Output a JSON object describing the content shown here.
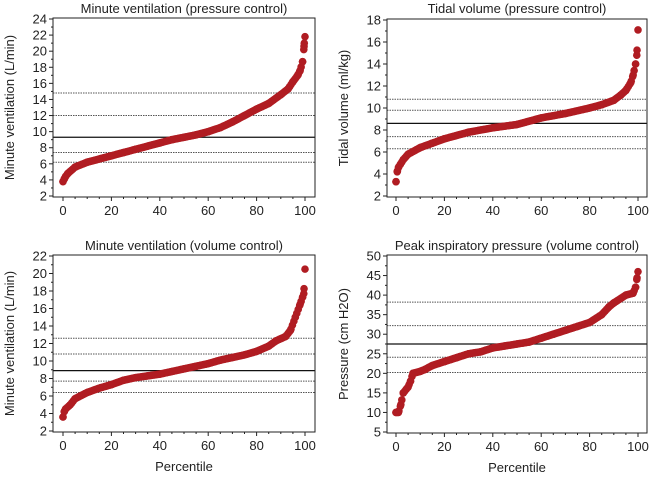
{
  "chart_data": [
    {
      "type": "scatter",
      "title": "Minute ventilation (pressure control)",
      "xlabel": "",
      "ylabel": "Minute ventilation (L/min)",
      "xlim": [
        0,
        100
      ],
      "ylim": [
        2,
        24
      ],
      "xticks": [
        0,
        20,
        40,
        60,
        80,
        100
      ],
      "yticks": [
        2,
        4,
        6,
        8,
        10,
        12,
        14,
        16,
        18,
        20,
        22,
        24
      ],
      "reference_lines": [
        {
          "y": 14.8,
          "style": "dotted"
        },
        {
          "y": 12.0,
          "style": "dotted"
        },
        {
          "y": 9.3,
          "style": "solid"
        },
        {
          "y": 7.4,
          "style": "dotted"
        },
        {
          "y": 6.2,
          "style": "dotted"
        }
      ],
      "x": [
        0,
        0.5,
        1,
        2,
        5,
        10,
        15,
        20,
        25,
        30,
        35,
        40,
        45,
        50,
        55,
        60,
        65,
        70,
        75,
        80,
        85,
        90,
        93,
        95,
        97,
        98,
        99,
        99.5,
        99.7,
        100
      ],
      "y": [
        3.8,
        4.1,
        4.4,
        4.8,
        5.6,
        6.2,
        6.6,
        7.0,
        7.4,
        7.8,
        8.2,
        8.6,
        9.0,
        9.3,
        9.6,
        10.0,
        10.5,
        11.2,
        12.0,
        12.8,
        13.5,
        14.6,
        15.3,
        16.2,
        17.0,
        17.6,
        18.7,
        20.2,
        21.0,
        21.8
      ]
    },
    {
      "type": "scatter",
      "title": "Tidal volume (pressure control)",
      "xlabel": "",
      "ylabel": "Tidal volume (ml/kg)",
      "xlim": [
        0,
        100
      ],
      "ylim": [
        2,
        18
      ],
      "xticks": [
        0,
        20,
        40,
        60,
        80,
        100
      ],
      "yticks": [
        2,
        4,
        6,
        8,
        10,
        12,
        14,
        16,
        18
      ],
      "reference_lines": [
        {
          "y": 10.8,
          "style": "dotted"
        },
        {
          "y": 9.8,
          "style": "dotted"
        },
        {
          "y": 8.6,
          "style": "solid"
        },
        {
          "y": 7.4,
          "style": "dotted"
        },
        {
          "y": 6.3,
          "style": "dotted"
        }
      ],
      "x": [
        0,
        0.5,
        1,
        3,
        5,
        10,
        15,
        20,
        25,
        30,
        40,
        50,
        60,
        70,
        80,
        85,
        90,
        93,
        95,
        97,
        98,
        99,
        99.5,
        100
      ],
      "y": [
        3.3,
        4.2,
        4.6,
        5.3,
        5.8,
        6.4,
        6.8,
        7.2,
        7.5,
        7.8,
        8.2,
        8.5,
        9.1,
        9.5,
        10.0,
        10.3,
        10.7,
        11.2,
        11.6,
        12.3,
        13.0,
        14.0,
        14.8,
        17.1
      ]
    },
    {
      "type": "scatter",
      "title": "Minute ventilation (volume control)",
      "xlabel": "Percentile",
      "ylabel": "Minute ventilation (L/min)",
      "xlim": [
        0,
        100
      ],
      "ylim": [
        2,
        22
      ],
      "xticks": [
        0,
        20,
        40,
        60,
        80,
        100
      ],
      "yticks": [
        2,
        4,
        6,
        8,
        10,
        12,
        14,
        16,
        18,
        20,
        22
      ],
      "reference_lines": [
        {
          "y": 12.6,
          "style": "dotted"
        },
        {
          "y": 10.8,
          "style": "dotted"
        },
        {
          "y": 8.9,
          "style": "solid"
        },
        {
          "y": 7.7,
          "style": "dotted"
        },
        {
          "y": 6.4,
          "style": "dotted"
        }
      ],
      "x": [
        0,
        0.5,
        1,
        3,
        5,
        10,
        15,
        20,
        25,
        30,
        35,
        40,
        45,
        50,
        55,
        60,
        65,
        70,
        75,
        80,
        85,
        88,
        92,
        94,
        96,
        98,
        99,
        99.5,
        100
      ],
      "y": [
        3.6,
        4.2,
        4.5,
        5.0,
        5.7,
        6.4,
        6.9,
        7.3,
        7.8,
        8.1,
        8.3,
        8.5,
        8.8,
        9.1,
        9.4,
        9.7,
        10.1,
        10.4,
        10.7,
        11.1,
        11.7,
        12.3,
        12.8,
        13.5,
        15.0,
        16.5,
        17.3,
        17.7,
        20.5
      ]
    },
    {
      "type": "scatter",
      "title": "Peak inspiratory pressure (volume control)",
      "xlabel": "Percentile",
      "ylabel": "Pressure (cm H2O)",
      "xlim": [
        0,
        100
      ],
      "ylim": [
        5,
        50
      ],
      "xticks": [
        0,
        20,
        40,
        60,
        80,
        100
      ],
      "yticks": [
        5,
        10,
        15,
        20,
        25,
        30,
        35,
        40,
        45,
        50
      ],
      "reference_lines": [
        {
          "y": 38.2,
          "style": "dotted"
        },
        {
          "y": 32.2,
          "style": "dotted"
        },
        {
          "y": 27.5,
          "style": "solid"
        },
        {
          "y": 24.1,
          "style": "dotted"
        },
        {
          "y": 20.2,
          "style": "dotted"
        }
      ],
      "x": [
        0,
        1,
        2,
        3,
        5,
        6,
        7,
        10,
        12,
        15,
        20,
        25,
        30,
        35,
        40,
        45,
        50,
        55,
        60,
        65,
        70,
        75,
        80,
        85,
        88,
        90,
        95,
        98,
        99,
        99.5,
        100
      ],
      "y": [
        10,
        10,
        12,
        15,
        16.5,
        18,
        20,
        20.5,
        21,
        22,
        23,
        24,
        25,
        25.5,
        26.5,
        27,
        27.5,
        28,
        29,
        30,
        31,
        32,
        33,
        35,
        37,
        38,
        40,
        40.5,
        42,
        44,
        46
      ]
    }
  ],
  "colors": {
    "points": "#b01c22",
    "axis": "#222222",
    "ref_line": "#555555"
  }
}
